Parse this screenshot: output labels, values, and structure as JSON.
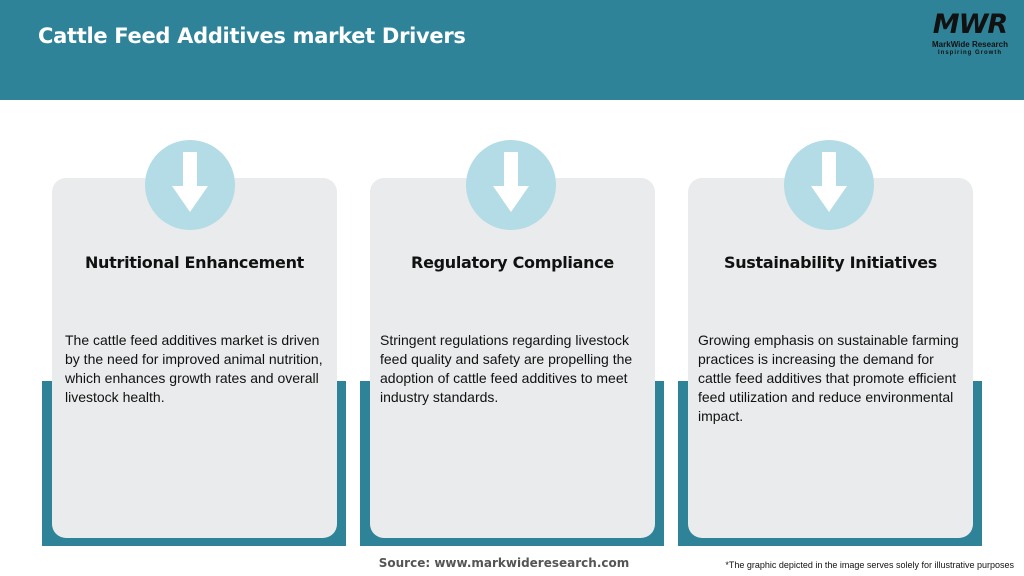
{
  "header": {
    "title": "Cattle Feed Additives market Drivers",
    "logo": {
      "mark": "MWR",
      "name": "MarkWide Research",
      "tagline": "Inspiring Growth"
    }
  },
  "colors": {
    "header": "#2f8399",
    "card": "#e9ebec",
    "circle": "#b3dce6"
  },
  "cards": [
    {
      "icon": "arrow-down-icon",
      "title": "Nutritional Enhancement",
      "body": "The cattle feed additives market is driven by the need for improved animal nutrition, which enhances growth rates and overall livestock health."
    },
    {
      "icon": "arrow-down-icon",
      "title": "Regulatory Compliance",
      "body": "Stringent regulations regarding livestock feed quality and safety are propelling the adoption of cattle feed additives to meet industry standards."
    },
    {
      "icon": "arrow-down-icon",
      "title": "Sustainability Initiatives",
      "body": "Growing emphasis on sustainable farming practices is increasing the demand for cattle feed additives that promote efficient feed utilization and reduce environmental impact."
    }
  ],
  "footer": {
    "source": "Source: www.markwideresearch.com",
    "note": "*The graphic depicted in the image serves solely for illustrative purposes"
  }
}
